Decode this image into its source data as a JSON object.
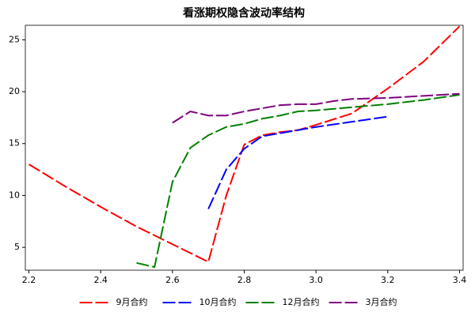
{
  "chart_data": {
    "type": "line",
    "title": "看涨期权隐含波动率结构",
    "xlim": [
      2.19,
      3.41
    ],
    "ylim": [
      2.8,
      26.4
    ],
    "xticks": [
      2.2,
      2.4,
      2.6,
      2.8,
      {
        "value": 3,
        "label": "3.0"
      },
      3.2,
      3.4
    ],
    "yticks": [
      5,
      10,
      15,
      20,
      25
    ],
    "grid": false,
    "legend": "bottom",
    "dashed": true,
    "series": [
      {
        "name": "9月合约",
        "color": "#ff0000",
        "x": [
          2.2,
          2.3,
          2.4,
          2.5,
          2.6,
          2.7,
          2.75,
          2.8,
          2.85,
          2.9,
          2.95,
          3.0,
          3.1,
          3.2,
          3.3,
          3.4
        ],
        "values": [
          13.0,
          10.9,
          8.9,
          7.0,
          5.3,
          3.6,
          10.0,
          14.9,
          15.8,
          16.1,
          16.3,
          16.8,
          17.9,
          20.3,
          22.9,
          26.3
        ]
      },
      {
        "name": "10月合约",
        "color": "#0000ff",
        "x": [
          2.7,
          2.75,
          2.8,
          2.85,
          2.9,
          3.0,
          3.1,
          3.2
        ],
        "values": [
          8.7,
          12.5,
          14.5,
          15.7,
          16.0,
          16.6,
          17.1,
          17.6
        ]
      },
      {
        "name": "12月合约",
        "color": "#008000",
        "x": [
          2.5,
          2.55,
          2.6,
          2.65,
          2.7,
          2.75,
          2.8,
          2.85,
          2.9,
          2.95,
          3.0,
          3.1,
          3.2,
          3.3,
          3.4
        ],
        "values": [
          3.5,
          3.1,
          11.3,
          14.6,
          15.8,
          16.6,
          16.9,
          17.4,
          17.7,
          18.1,
          18.2,
          18.5,
          18.8,
          19.2,
          19.7
        ]
      },
      {
        "name": "3月合约",
        "color": "#800080",
        "x": [
          2.6,
          2.65,
          2.7,
          2.75,
          2.8,
          2.85,
          2.9,
          2.95,
          3.0,
          3.05,
          3.1,
          3.2,
          3.3,
          3.4
        ],
        "values": [
          17.0,
          18.1,
          17.7,
          17.7,
          18.1,
          18.4,
          18.7,
          18.8,
          18.8,
          19.1,
          19.3,
          19.4,
          19.6,
          19.8
        ]
      }
    ]
  }
}
